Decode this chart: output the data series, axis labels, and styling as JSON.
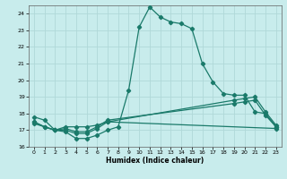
{
  "xlabel": "Humidex (Indice chaleur)",
  "bg_color": "#c8ecec",
  "grid_color": "#b0d8d8",
  "line_color": "#1a7a6a",
  "xlim": [
    -0.5,
    23.5
  ],
  "ylim": [
    16.0,
    24.5
  ],
  "xticks": [
    0,
    1,
    2,
    3,
    4,
    5,
    6,
    7,
    8,
    9,
    10,
    11,
    12,
    13,
    14,
    15,
    16,
    17,
    18,
    19,
    20,
    21,
    22,
    23
  ],
  "yticks": [
    16,
    17,
    18,
    19,
    20,
    21,
    22,
    23,
    24
  ],
  "series1_x": [
    0,
    1,
    2,
    3,
    4,
    5,
    6,
    7,
    8,
    9,
    10,
    11,
    12,
    13,
    14,
    15,
    16,
    17,
    18,
    19,
    20,
    21,
    22,
    23
  ],
  "series1_y": [
    17.8,
    17.6,
    17.0,
    16.9,
    16.5,
    16.5,
    16.7,
    17.0,
    17.2,
    19.4,
    23.2,
    24.4,
    23.8,
    23.5,
    23.4,
    23.1,
    21.0,
    19.9,
    19.2,
    19.1,
    19.1,
    18.1,
    18.0,
    17.2
  ],
  "series2_x": [
    0,
    1,
    2,
    3,
    4,
    5,
    6,
    7,
    19,
    20,
    21,
    22,
    23
  ],
  "series2_y": [
    17.5,
    17.2,
    17.0,
    17.0,
    16.8,
    16.8,
    17.1,
    17.5,
    18.8,
    18.9,
    19.0,
    18.1,
    17.3
  ],
  "series3_x": [
    0,
    1,
    2,
    3,
    4,
    5,
    6,
    7,
    19,
    20,
    21,
    22,
    23
  ],
  "series3_y": [
    17.5,
    17.2,
    17.0,
    17.1,
    16.9,
    16.9,
    17.2,
    17.6,
    18.6,
    18.7,
    18.8,
    17.9,
    17.2
  ],
  "series4_x": [
    0,
    2,
    3,
    4,
    5,
    6,
    7,
    23
  ],
  "series4_y": [
    17.4,
    17.0,
    17.2,
    17.2,
    17.2,
    17.3,
    17.5,
    17.1
  ]
}
